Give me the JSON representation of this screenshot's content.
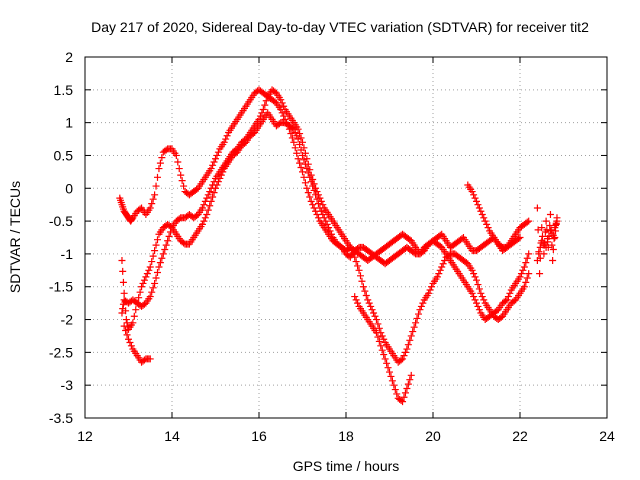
{
  "chart_data": {
    "type": "scatter",
    "title": "Day 217 of 2020, Sidereal Day-to-day VTEC variation (SDTVAR) for receiver tit2",
    "xlabel": "GPS time / hours",
    "ylabel": "SDTVAR / TECUs",
    "xlim": [
      12,
      24
    ],
    "ylim": [
      -3.5,
      2
    ],
    "xticks": [
      12,
      14,
      16,
      18,
      20,
      22,
      24
    ],
    "yticks": [
      -3.5,
      -3,
      -2.5,
      -2,
      -1.5,
      -1,
      -0.5,
      0,
      0.5,
      1,
      1.5,
      2
    ],
    "xtick_labels": [
      "12",
      "14",
      "16",
      "18",
      "20",
      "22",
      "24"
    ],
    "ytick_labels": [
      "-3.5",
      "-3",
      "-2.5",
      "-2",
      "-1.5",
      "-1",
      "-0.5",
      "0",
      "0.5",
      "1",
      "1.5",
      "2"
    ],
    "grid": true,
    "marker": "+",
    "color": "#ff0000",
    "series": [
      {
        "x": [
          12.8,
          12.85,
          12.9,
          12.95,
          13.0,
          13.05,
          13.1,
          13.2,
          13.3,
          13.4,
          13.5,
          13.6,
          13.7,
          13.8,
          13.9,
          14.0,
          14.1,
          14.2,
          14.3,
          14.4,
          14.5,
          14.6,
          14.7,
          14.8,
          14.9,
          15.0,
          15.1,
          15.2,
          15.3,
          15.4,
          15.5,
          15.6,
          15.7,
          15.8,
          15.9,
          16.0,
          16.1,
          16.2,
          16.3,
          16.4,
          16.5,
          16.6,
          16.7,
          16.8,
          16.9,
          17.0,
          17.1,
          17.2,
          17.3,
          17.4,
          17.5,
          17.6,
          17.7,
          17.8,
          17.9,
          18.0,
          18.1,
          18.2,
          18.3,
          18.4,
          18.5,
          18.6,
          18.7,
          18.8,
          18.9,
          19.0,
          19.1,
          19.2,
          19.3,
          19.4,
          19.5,
          19.6,
          19.7,
          19.8,
          19.9,
          20.0,
          20.1,
          20.2,
          20.3,
          20.4,
          20.5,
          20.6,
          20.7,
          20.8,
          20.9,
          21.0,
          21.1,
          21.2,
          21.3,
          21.4,
          21.5,
          21.6,
          21.7,
          21.8,
          21.9,
          22.0,
          22.1,
          22.2
        ],
        "y": [
          -0.15,
          -0.25,
          -0.35,
          -0.4,
          -0.45,
          -0.5,
          -0.45,
          -0.35,
          -0.3,
          -0.4,
          -0.3,
          -0.1,
          0.3,
          0.55,
          0.6,
          0.6,
          0.5,
          0.2,
          -0.05,
          -0.1,
          -0.05,
          0.0,
          0.1,
          0.2,
          0.3,
          0.45,
          0.6,
          0.7,
          0.85,
          0.95,
          1.05,
          1.15,
          1.25,
          1.35,
          1.45,
          1.5,
          1.45,
          1.4,
          1.35,
          1.3,
          1.2,
          1.05,
          0.9,
          0.7,
          0.45,
          0.25,
          0.0,
          -0.2,
          -0.35,
          -0.5,
          -0.6,
          -0.7,
          -0.8,
          -0.85,
          -0.9,
          -0.95,
          -0.9,
          -0.95,
          -1.0,
          -1.05,
          -1.1,
          -1.05,
          -1.0,
          -0.95,
          -0.9,
          -0.85,
          -0.8,
          -0.75,
          -0.7,
          -0.75,
          -0.8,
          -0.9,
          -1.0,
          -0.95,
          -0.85,
          -0.8,
          -0.75,
          -0.7,
          -0.8,
          -0.9,
          -0.85,
          -0.8,
          -0.75,
          -0.85,
          -0.95,
          -0.95,
          -0.9,
          -0.85,
          -0.8,
          -0.75,
          -0.85,
          -0.95,
          -0.9,
          -0.8,
          -0.7,
          -0.6,
          -0.55,
          -0.5
        ]
      },
      {
        "x": [
          12.85,
          12.9,
          12.95,
          13.0,
          13.1,
          13.2,
          13.3,
          13.4,
          13.5,
          13.6,
          13.7,
          13.8,
          13.9,
          14.0,
          14.1,
          14.2,
          14.3,
          14.4,
          14.5,
          14.6,
          14.7,
          14.8,
          14.9,
          15.0,
          15.1,
          15.2,
          15.3,
          15.4,
          15.5,
          15.6,
          15.7,
          15.8,
          15.9,
          16.0,
          16.1,
          16.2,
          16.3,
          16.4,
          16.5,
          16.6,
          16.7,
          16.8,
          16.9,
          17.0,
          17.1,
          17.2,
          17.3,
          17.4,
          17.5,
          17.6,
          17.7,
          17.8,
          17.9,
          18.0,
          18.1,
          18.2,
          18.3,
          18.4,
          18.5,
          18.6,
          18.7,
          18.8,
          18.9,
          19.0,
          19.1,
          19.2,
          19.3,
          19.4,
          19.5,
          19.6,
          19.7,
          19.8,
          19.9,
          20.0,
          20.1,
          20.2,
          20.3,
          20.4,
          20.5,
          20.6,
          20.7,
          20.8,
          20.9,
          21.0,
          21.1,
          21.2,
          21.3,
          21.4,
          21.5,
          21.6,
          21.7,
          21.8,
          21.9,
          22.0,
          22.1,
          22.2
        ],
        "y": [
          -1.1,
          -1.6,
          -2.0,
          -2.15,
          -2.05,
          -1.75,
          -1.5,
          -1.35,
          -1.2,
          -0.95,
          -0.7,
          -0.6,
          -0.55,
          -0.6,
          -0.7,
          -0.8,
          -0.85,
          -0.85,
          -0.75,
          -0.65,
          -0.55,
          -0.4,
          -0.2,
          0.0,
          0.15,
          0.3,
          0.4,
          0.5,
          0.55,
          0.65,
          0.7,
          0.8,
          0.85,
          0.95,
          1.05,
          1.15,
          1.05,
          0.95,
          1.0,
          1.0,
          0.95,
          0.9,
          0.75,
          0.5,
          0.3,
          0.1,
          -0.1,
          -0.3,
          -0.45,
          -0.6,
          -0.75,
          -0.85,
          -0.9,
          -1.0,
          -1.05,
          -0.95,
          -0.9,
          -0.9,
          -0.95,
          -1.0,
          -1.05,
          -1.1,
          -1.15,
          -1.1,
          -1.05,
          -1.0,
          -0.95,
          -0.9,
          -0.95,
          -1.0,
          -1.0,
          -0.9,
          -0.85,
          -0.8,
          -0.85,
          -0.9,
          -1.0,
          -1.1,
          -1.2,
          -1.3,
          -1.4,
          -1.5,
          -1.6,
          -1.75,
          -1.9,
          -2.0,
          -1.95,
          -1.9,
          -1.85,
          -1.75,
          -1.7,
          -1.55,
          -1.45,
          -1.35,
          -1.2,
          -1.0
        ]
      },
      {
        "x": [
          12.85,
          12.9,
          13.0,
          13.1,
          13.2,
          13.3,
          13.4,
          13.5,
          13.6,
          13.7,
          13.8,
          13.9,
          14.0,
          14.1,
          14.2,
          14.3,
          14.4,
          14.5,
          14.6,
          14.7,
          14.8,
          14.9,
          15.0,
          15.1,
          15.2,
          15.3,
          15.4,
          15.5,
          15.6,
          15.7,
          15.8,
          15.9,
          16.0,
          16.1,
          16.2,
          16.3,
          16.4,
          16.5,
          16.6,
          16.7,
          16.8,
          16.9,
          17.0,
          17.1,
          17.2,
          17.3,
          17.4,
          17.5,
          17.6,
          17.7,
          17.8,
          17.9,
          18.0,
          18.1,
          18.2,
          18.3,
          18.4,
          18.5,
          18.6,
          18.7,
          18.8,
          18.9,
          19.0,
          19.1,
          19.2,
          19.3,
          19.4,
          19.5,
          19.6,
          19.7,
          19.8,
          19.9,
          20.0,
          20.1,
          20.2,
          20.3,
          20.4,
          20.5,
          20.6,
          20.7,
          20.8,
          20.9,
          21.0,
          21.1,
          21.2,
          21.3,
          21.4,
          21.5,
          21.6,
          21.7,
          21.8,
          21.9,
          22.0,
          22.1,
          22.2
        ],
        "y": [
          -1.9,
          -1.7,
          -1.75,
          -1.7,
          -1.75,
          -1.8,
          -1.75,
          -1.65,
          -1.45,
          -1.2,
          -1.0,
          -0.8,
          -0.6,
          -0.5,
          -0.45,
          -0.45,
          -0.4,
          -0.45,
          -0.4,
          -0.3,
          -0.15,
          0.0,
          0.15,
          0.25,
          0.35,
          0.45,
          0.55,
          0.6,
          0.7,
          0.75,
          0.85,
          0.95,
          1.05,
          1.2,
          1.4,
          1.5,
          1.45,
          1.35,
          1.2,
          1.1,
          1.0,
          0.9,
          0.7,
          0.45,
          0.2,
          0.0,
          -0.15,
          -0.3,
          -0.4,
          -0.5,
          -0.6,
          -0.7,
          -0.8,
          -0.9,
          -1.05,
          -1.25,
          -1.5,
          -1.7,
          -1.85,
          -2.0,
          -2.2,
          -2.35,
          -2.45,
          -2.55,
          -2.65,
          -2.6,
          -2.45,
          -2.25,
          -2.05,
          -1.85,
          -1.7,
          -1.6,
          -1.45,
          -1.35,
          -1.2,
          -1.05,
          -1.0,
          -1.0,
          -1.05,
          -1.1,
          -1.15,
          -1.25,
          -1.4,
          -1.6,
          -1.75,
          -1.85,
          -1.95,
          -2.0,
          -1.95,
          -1.85,
          -1.75,
          -1.7,
          -1.6,
          -1.5,
          -1.3
        ]
      },
      {
        "x": [
          12.9,
          13.0,
          13.1,
          13.2,
          13.3,
          13.4,
          13.5
        ],
        "y": [
          -2.1,
          -2.3,
          -2.45,
          -2.55,
          -2.65,
          -2.6,
          -2.6
        ]
      },
      {
        "x": [
          18.2,
          18.3,
          18.4,
          18.5,
          18.6,
          18.7,
          18.8,
          18.9,
          19.0,
          19.1,
          19.2,
          19.3,
          19.4,
          19.5
        ],
        "y": [
          -1.65,
          -1.8,
          -1.9,
          -2.0,
          -2.1,
          -2.2,
          -2.4,
          -2.6,
          -2.8,
          -3.0,
          -3.2,
          -3.25,
          -3.05,
          -2.85
        ]
      },
      {
        "x": [
          20.8,
          20.9,
          21.0,
          21.1,
          21.2,
          21.3,
          21.4,
          21.5,
          21.6,
          21.7,
          21.8,
          21.9,
          22.0
        ],
        "y": [
          0.05,
          -0.05,
          -0.2,
          -0.35,
          -0.5,
          -0.65,
          -0.75,
          -0.85,
          -0.9,
          -0.9,
          -0.85,
          -0.8,
          -0.75
        ]
      },
      {
        "x": [
          22.4,
          22.45,
          22.5,
          22.55,
          22.6,
          22.65,
          22.7,
          22.75,
          22.8,
          22.85
        ],
        "y": [
          -0.3,
          -1.3,
          -0.6,
          -1.0,
          -0.5,
          -0.9,
          -0.4,
          -1.1,
          -0.6,
          -0.5
        ]
      },
      {
        "x": [
          22.4,
          22.5,
          22.6,
          22.7,
          22.8,
          22.85
        ],
        "y": [
          -1.1,
          -0.8,
          -0.9,
          -0.65,
          -0.75,
          -0.45
        ]
      }
    ]
  }
}
